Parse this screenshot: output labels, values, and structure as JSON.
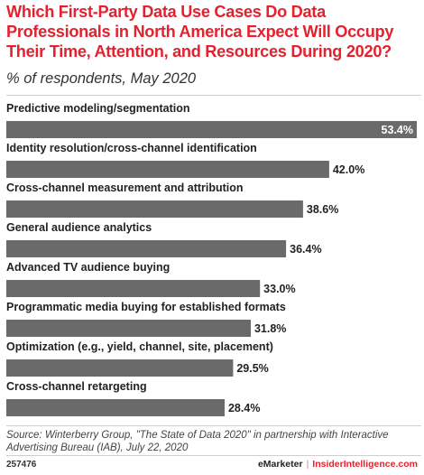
{
  "header": {
    "title": "Which First-Party Data Use Cases Do Data Professionals in North America Expect Will Occupy Their Time, Attention, and Resources During 2020?",
    "subtitle": "% of respondents, May 2020"
  },
  "chart_data": {
    "type": "bar",
    "orientation": "horizontal",
    "categories": [
      "Predictive modeling/segmentation",
      "Identity resolution/cross-channel identification",
      "Cross-channel measurement and attribution",
      "General audience analytics",
      "Advanced TV audience buying",
      "Programmatic media buying for established formats",
      "Optimization (e.g., yield, channel, site, placement)",
      "Cross-channel retargeting"
    ],
    "values": [
      53.4,
      42.0,
      38.6,
      36.4,
      33.0,
      31.8,
      29.5,
      28.4
    ],
    "value_labels": [
      "53.4%",
      "42.0%",
      "38.6%",
      "36.4%",
      "33.0%",
      "31.8%",
      "29.5%",
      "28.4%"
    ],
    "xlim": [
      0,
      53.4
    ],
    "grid": false,
    "legend": "none",
    "colors": {
      "bar": "#6a6a6a",
      "label_inside": "#ffffff",
      "label_outside": "#222222"
    }
  },
  "footer": {
    "source": "Source: Winterberry Group, \"The State of Data 2020\" in partnership with Interactive Advertising Bureau (IAB), July 22, 2020",
    "chart_id": "257476",
    "brand_emarketer": "eMarketer",
    "brand_separator": "|",
    "brand_insider": "InsiderIntelligence.com"
  },
  "colors": {
    "title": "#e3222f",
    "brand_accent": "#e3222f"
  }
}
